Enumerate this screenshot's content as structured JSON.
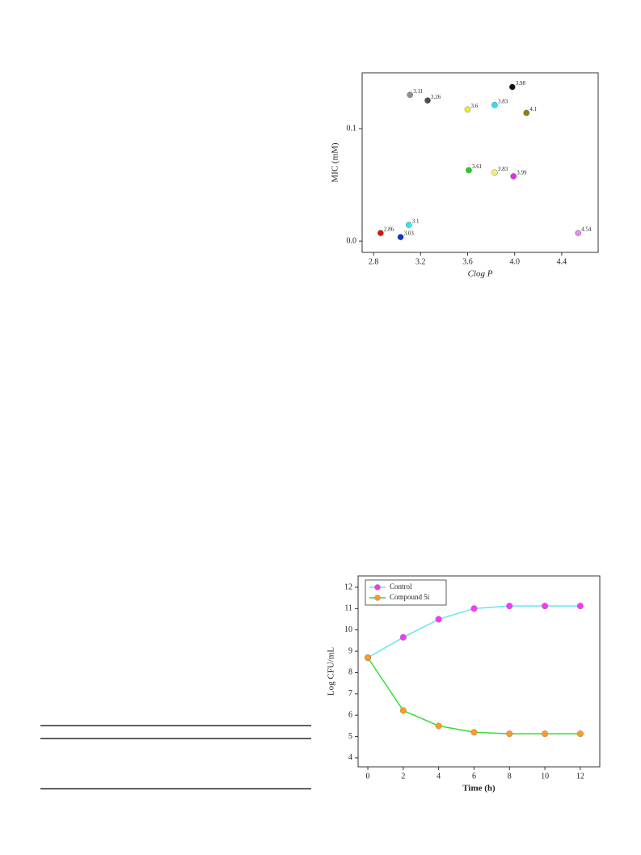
{
  "chart_data": [
    {
      "type": "scatter",
      "x_label": "Clog P",
      "y_label": "MIC (mM)",
      "x": [
        2.86,
        3.03,
        3.1,
        3.11,
        3.26,
        3.6,
        3.61,
        3.83,
        3.83,
        3.98,
        3.99,
        4.1,
        4.54
      ],
      "values": [
        0.0072,
        0.0036,
        0.0144,
        0.13,
        0.125,
        0.117,
        0.063,
        0.121,
        0.061,
        0.137,
        0.0576,
        0.114,
        0.0072
      ],
      "colors": [
        "#e01010",
        "#1030d0",
        "#30e8f0",
        "#909090",
        "#505050",
        "#f0f020",
        "#20d020",
        "#30e0f0",
        "#f4f070",
        "#101010",
        "#e030e0",
        "#908010",
        "#e090e8"
      ],
      "xlim": [
        2.703,
        4.71
      ],
      "ylim": [
        -0.01,
        0.1496
      ],
      "xticks": [
        2.8,
        3.2,
        3.6,
        {
          "value": 4,
          "label": "4.0"
        },
        4.4
      ],
      "yticks": [
        {
          "value": 0,
          "label": "0.0"
        },
        0.1
      ]
    },
    {
      "type": "line",
      "x_label": "Time (h)",
      "y_label": "Log CFU/mL",
      "x": [
        0,
        2,
        4,
        6,
        8,
        10,
        12
      ],
      "series": [
        {
          "name": "Control",
          "color": "#66e6f0",
          "marker_color": "#ff33ff",
          "values": [
            8.7,
            9.65,
            10.5,
            11.0,
            11.12,
            11.12,
            11.12
          ]
        },
        {
          "name": "Compound 5i",
          "color": "#33dd33",
          "marker_color": "#ff9a22",
          "values": [
            8.7,
            6.22,
            5.5,
            5.2,
            5.13,
            5.13,
            5.13
          ]
        }
      ],
      "xlim": [
        -0.55,
        13.1
      ],
      "ylim": [
        3.58,
        12.53
      ],
      "xticks": [
        0,
        2,
        4,
        6,
        8,
        10,
        12
      ],
      "yticks": [
        4,
        5,
        6,
        7,
        8,
        9,
        10,
        11,
        12
      ],
      "legend": "top-left"
    }
  ]
}
